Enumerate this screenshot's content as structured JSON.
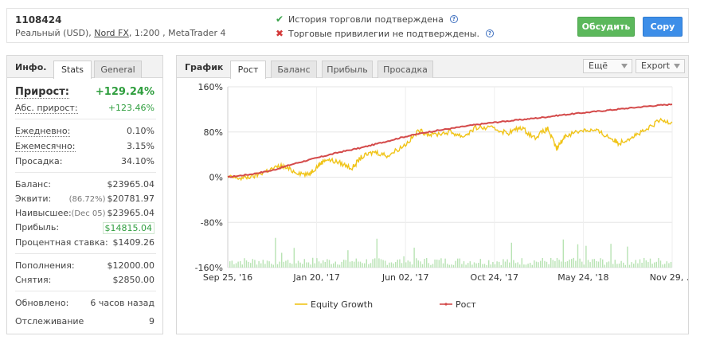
{
  "account": {
    "id": "1108424",
    "type": "Реальный (USD),",
    "broker": "Nord FX",
    "leverage_platform": ", 1:200 , MetaTrader 4"
  },
  "verification": {
    "history_text": "История торговли подтверждена",
    "privileges_text": "Торговые привилегии не подтверждены.",
    "help_glyph": "?"
  },
  "actions": {
    "discuss_label": "Обсудить",
    "copy_label": "Copy"
  },
  "info_panel": {
    "title": "Инфо.",
    "tabs": [
      "Stats",
      "General"
    ],
    "growth_label": "Прирост:",
    "growth_value": "+129.24%",
    "abs_growth_label": "Абс. прирост:",
    "abs_growth_value": "+123.46%",
    "daily_label": "Ежедневно:",
    "daily_value": "0.10%",
    "monthly_label": "Ежемесячно:",
    "monthly_value": "3.15%",
    "drawdown_label": "Просадка:",
    "drawdown_value": "34.10%",
    "balance_label": "Баланс:",
    "balance_value": "$23965.04",
    "equity_label": "Эквити:",
    "equity_pct": "(86.72%)",
    "equity_value": "$20781.97",
    "highest_label": "Наивысшее:",
    "highest_date": "(Dec 05)",
    "highest_value": "$23965.04",
    "profit_label": "Прибыль:",
    "profit_value": "$14815.04",
    "interest_label": "Процентная ставка:",
    "interest_value": "$1409.26",
    "deposits_label": "Пополнения:",
    "deposits_value": "$12000.00",
    "withdrawals_label": "Снятия:",
    "withdrawals_value": "$2850.00",
    "updated_label": "Обновлено:",
    "updated_value": "6 часов назад",
    "tracking_label": "Отслеживание",
    "tracking_value": "9"
  },
  "chart_panel": {
    "title": "График",
    "tabs": [
      "Рост",
      "Баланс",
      "Прибыль",
      "Просадка"
    ],
    "more_label": "Ещё",
    "export_label": "Export"
  },
  "colors": {
    "growth_line": "#d44a4a",
    "equity_line": "#f0c419",
    "volume_bars": "#b8e3b3",
    "green_button": "#5cb85c",
    "blue_button": "#3d8ee8"
  },
  "chart_data": {
    "type": "line",
    "title": "",
    "xlabel": "",
    "ylabel": "",
    "ylim": [
      -160,
      160
    ],
    "y_ticks": [
      "160%",
      "80%",
      "0%",
      "-80%",
      "-160%"
    ],
    "x_ticks": [
      "Sep 25, '16",
      "Jan 20, '17",
      "Jun 02, '17",
      "Oct 24, '17",
      "May 24, '18",
      "Nov 29, ..."
    ],
    "legend_position": "bottom-center",
    "grid": true,
    "series": [
      {
        "name": "Рост",
        "points": [
          [
            0,
            0
          ],
          [
            0.05,
            5
          ],
          [
            0.1,
            12
          ],
          [
            0.15,
            24
          ],
          [
            0.2,
            34
          ],
          [
            0.25,
            44
          ],
          [
            0.3,
            52
          ],
          [
            0.35,
            62
          ],
          [
            0.4,
            72
          ],
          [
            0.45,
            80
          ],
          [
            0.5,
            86
          ],
          [
            0.55,
            92
          ],
          [
            0.6,
            97
          ],
          [
            0.65,
            101
          ],
          [
            0.7,
            105
          ],
          [
            0.75,
            110
          ],
          [
            0.8,
            114
          ],
          [
            0.85,
            118
          ],
          [
            0.9,
            122
          ],
          [
            0.95,
            126
          ],
          [
            1,
            129
          ]
        ]
      },
      {
        "name": "Equity Growth",
        "points": [
          [
            0,
            0
          ],
          [
            0.03,
            -2
          ],
          [
            0.06,
            2
          ],
          [
            0.09,
            12
          ],
          [
            0.12,
            20
          ],
          [
            0.15,
            10
          ],
          [
            0.18,
            4
          ],
          [
            0.2,
            18
          ],
          [
            0.22,
            32
          ],
          [
            0.25,
            26
          ],
          [
            0.28,
            16
          ],
          [
            0.3,
            35
          ],
          [
            0.33,
            45
          ],
          [
            0.36,
            38
          ],
          [
            0.4,
            58
          ],
          [
            0.43,
            82
          ],
          [
            0.46,
            75
          ],
          [
            0.5,
            80
          ],
          [
            0.53,
            72
          ],
          [
            0.56,
            88
          ],
          [
            0.6,
            86
          ],
          [
            0.63,
            78
          ],
          [
            0.66,
            88
          ],
          [
            0.69,
            70
          ],
          [
            0.72,
            86
          ],
          [
            0.74,
            50
          ],
          [
            0.76,
            74
          ],
          [
            0.8,
            84
          ],
          [
            0.83,
            82
          ],
          [
            0.86,
            70
          ],
          [
            0.88,
            60
          ],
          [
            0.91,
            72
          ],
          [
            0.94,
            82
          ],
          [
            0.97,
            100
          ],
          [
            1,
            98
          ]
        ]
      }
    ]
  }
}
